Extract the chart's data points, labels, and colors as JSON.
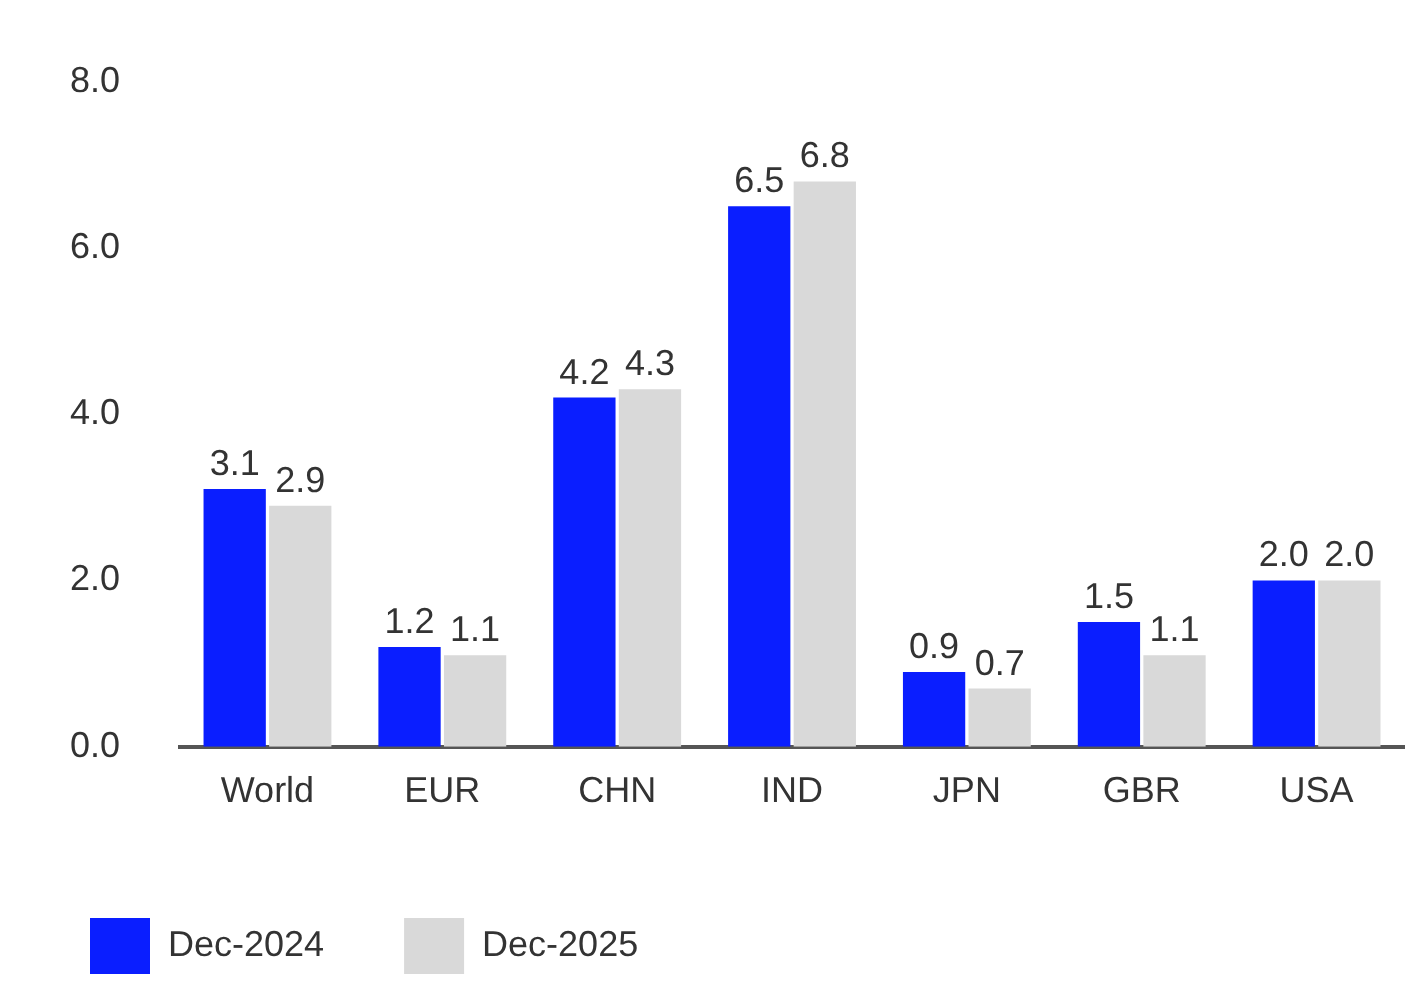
{
  "chart_data": {
    "type": "bar",
    "categories": [
      "World",
      "EUR",
      "CHN",
      "IND",
      "JPN",
      "GBR",
      "USA"
    ],
    "series": [
      {
        "name": "Dec-2024",
        "color": "#0a1eff",
        "values": [
          3.1,
          1.2,
          4.2,
          6.5,
          0.9,
          1.5,
          2.0
        ],
        "value_labels": [
          "3.1",
          "1.2",
          "4.2",
          "6.5",
          "0.9",
          "1.5",
          "2.0"
        ]
      },
      {
        "name": "Dec-2025",
        "color": "#d9d9d9",
        "values": [
          2.9,
          1.1,
          4.3,
          6.8,
          0.7,
          1.1,
          2.0
        ],
        "value_labels": [
          "2.9",
          "1.1",
          "4.3",
          "6.8",
          "0.7",
          "1.1",
          "2.0"
        ]
      }
    ],
    "ylim": [
      0,
      8
    ],
    "yticks": [
      {
        "value": 0,
        "label": "0.0"
      },
      {
        "value": 2,
        "label": "2.0"
      },
      {
        "value": 4,
        "label": "4.0"
      },
      {
        "value": 6,
        "label": "6.0"
      },
      {
        "value": 8,
        "label": "8.0"
      }
    ],
    "grid": false,
    "legend": "bottom"
  }
}
